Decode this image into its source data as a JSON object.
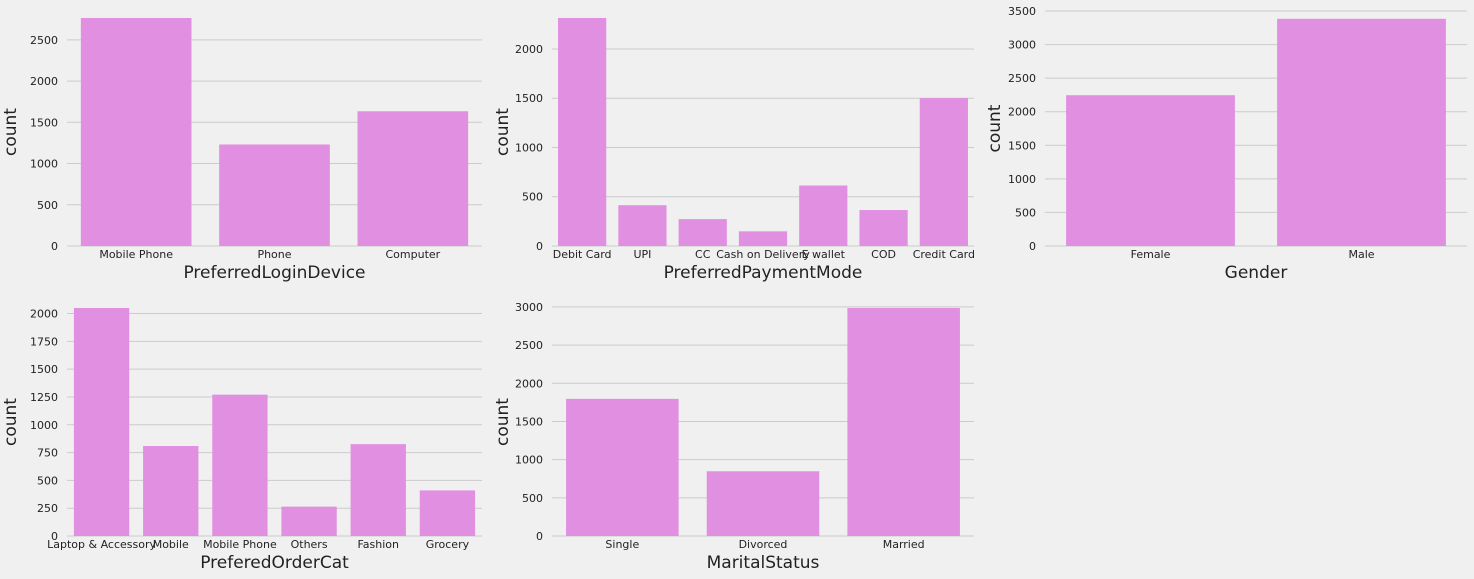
{
  "chart_data": [
    {
      "type": "bar",
      "title": "",
      "xlabel": "PreferredLoginDevice",
      "ylabel": "count",
      "categories": [
        "Mobile Phone",
        "Phone",
        "Computer"
      ],
      "values": [
        2765,
        1231,
        1634
      ],
      "yticks": [
        0,
        500,
        1000,
        1500,
        2000,
        2500
      ],
      "ylim": [
        0,
        2765
      ],
      "grid": true,
      "color": "#e18fe1"
    },
    {
      "type": "bar",
      "title": "",
      "xlabel": "PreferredPaymentMode",
      "ylabel": "count",
      "categories": [
        "Debit Card",
        "UPI",
        "CC",
        "Cash on Delivery",
        "E wallet",
        "COD",
        "Credit Card"
      ],
      "values": [
        2314,
        414,
        273,
        149,
        614,
        365,
        1501
      ],
      "yticks": [
        0,
        500,
        1000,
        1500,
        2000
      ],
      "ylim": [
        0,
        2314
      ],
      "grid": true,
      "color": "#e18fe1"
    },
    {
      "type": "bar",
      "title": "",
      "xlabel": "Gender",
      "ylabel": "count",
      "categories": [
        "Female",
        "Male"
      ],
      "values": [
        2246,
        3384
      ],
      "yticks": [
        0,
        500,
        1000,
        1500,
        2000,
        2500,
        3000,
        3500
      ],
      "ylim": [
        0,
        3500
      ],
      "grid": true,
      "color": "#e18fe1"
    },
    {
      "type": "bar",
      "title": "",
      "xlabel": "PreferedOrderCat",
      "ylabel": "count",
      "categories": [
        "Laptop & Accessory",
        "Mobile",
        "Mobile Phone",
        "Others",
        "Fashion",
        "Grocery"
      ],
      "values": [
        2050,
        809,
        1271,
        264,
        826,
        410
      ],
      "yticks": [
        0,
        250,
        500,
        750,
        1000,
        1250,
        1500,
        1750,
        2000
      ],
      "ylim": [
        0,
        2050
      ],
      "grid": true,
      "color": "#e18fe1"
    },
    {
      "type": "bar",
      "title": "",
      "xlabel": "MaritalStatus",
      "ylabel": "count",
      "categories": [
        "Single",
        "Divorced",
        "Married"
      ],
      "values": [
        1796,
        848,
        2986
      ],
      "yticks": [
        0,
        500,
        1000,
        1500,
        2000,
        2500,
        3000
      ],
      "ylim": [
        0,
        2986
      ],
      "grid": true,
      "color": "#e18fe1"
    }
  ]
}
